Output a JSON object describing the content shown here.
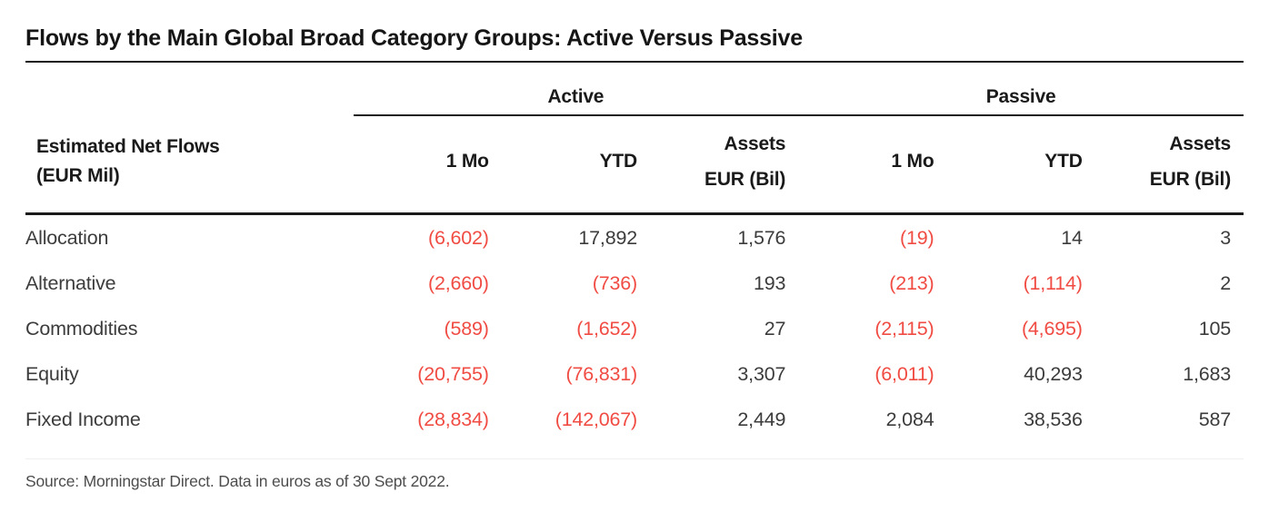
{
  "title": "Flows by the Main Global Broad Category Groups: Active Versus Passive",
  "table": {
    "group_headers": {
      "active": "Active",
      "passive": "Passive"
    },
    "row_header": {
      "line1": "Estimated Net Flows",
      "line2": "(EUR Mil)"
    },
    "column_headers": {
      "one_mo": "1 Mo",
      "ytd": "YTD",
      "assets_line1": "Assets",
      "assets_line2": "EUR (Bil)"
    },
    "rows": [
      {
        "label": "Allocation",
        "values": [
          "(6,602)",
          "17,892",
          "1,576",
          "(19)",
          "14",
          "3"
        ]
      },
      {
        "label": "Alternative",
        "values": [
          "(2,660)",
          "(736)",
          "193",
          "(213)",
          "(1,114)",
          "2"
        ]
      },
      {
        "label": "Commodities",
        "values": [
          "(589)",
          "(1,652)",
          "27",
          "(2,115)",
          "(4,695)",
          "105"
        ]
      },
      {
        "label": "Equity",
        "values": [
          "(20,755)",
          "(76,831)",
          "3,307",
          "(6,011)",
          "40,293",
          "1,683"
        ]
      },
      {
        "label": "Fixed Income",
        "values": [
          "(28,834)",
          "(142,067)",
          "2,449",
          "2,084",
          "38,536",
          "587"
        ]
      }
    ]
  },
  "footer": {
    "source": "Source: Morningstar Direct. Data in euros as of 30 Sept 2022."
  },
  "colors": {
    "negative": "#f04c43",
    "text": "#3c3c3c",
    "heading": "#1a1a1a"
  },
  "chart_data": {
    "type": "table",
    "title": "Flows by the Main Global Broad Category Groups: Active Versus Passive",
    "row_header": "Estimated Net Flows (EUR Mil)",
    "column_groups": [
      "Active",
      "Passive"
    ],
    "columns": [
      "Active 1 Mo",
      "Active YTD",
      "Active Assets EUR (Bil)",
      "Passive 1 Mo",
      "Passive YTD",
      "Passive Assets EUR (Bil)"
    ],
    "categories": [
      "Allocation",
      "Alternative",
      "Commodities",
      "Equity",
      "Fixed Income"
    ],
    "series": [
      {
        "name": "Active 1 Mo",
        "values": [
          -6602,
          -2660,
          -589,
          -20755,
          -28834
        ]
      },
      {
        "name": "Active YTD",
        "values": [
          17892,
          -736,
          -1652,
          -76831,
          -142067
        ]
      },
      {
        "name": "Active Assets EUR (Bil)",
        "values": [
          1576,
          193,
          27,
          3307,
          2449
        ]
      },
      {
        "name": "Passive 1 Mo",
        "values": [
          -19,
          -213,
          -2115,
          -6011,
          2084
        ]
      },
      {
        "name": "Passive YTD",
        "values": [
          14,
          -1114,
          -4695,
          40293,
          38536
        ]
      },
      {
        "name": "Passive Assets EUR (Bil)",
        "values": [
          3,
          2,
          105,
          1683,
          587
        ]
      }
    ],
    "notes": "Negative values shown in parentheses and red",
    "source": "Source: Morningstar Direct. Data in euros as of 30 Sept 2022."
  }
}
